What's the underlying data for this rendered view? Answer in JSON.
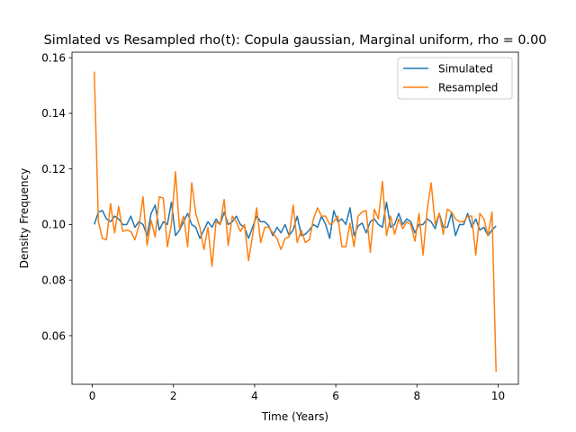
{
  "chart_data": {
    "type": "line",
    "title": "Simlated vs Resampled rho(t): Copula gaussian, Marginal uniform, rho =  0.00",
    "xlabel": "Time (Years)",
    "ylabel": "Density Frequency",
    "xlim": [
      -0.5,
      10.5
    ],
    "ylim": [
      0.0425,
      0.162
    ],
    "xticks": [
      0,
      2,
      4,
      6,
      8,
      10
    ],
    "xtick_labels": [
      "0",
      "2",
      "4",
      "6",
      "8",
      "10"
    ],
    "yticks": [
      0.06,
      0.08,
      0.1,
      0.12,
      0.14,
      0.16
    ],
    "ytick_labels": [
      "0.06",
      "0.08",
      "0.10",
      "0.12",
      "0.14",
      "0.16"
    ],
    "grid": false,
    "legend_position": "top-right",
    "series": [
      {
        "name": "Simulated",
        "color": "#1f77b4",
        "x": [
          0.05,
          0.15,
          0.25,
          0.35,
          0.45,
          0.55,
          0.65,
          0.75,
          0.85,
          0.95,
          1.05,
          1.15,
          1.25,
          1.35,
          1.45,
          1.55,
          1.65,
          1.75,
          1.85,
          1.95,
          2.05,
          2.15,
          2.25,
          2.35,
          2.45,
          2.55,
          2.65,
          2.75,
          2.85,
          2.95,
          3.05,
          3.15,
          3.25,
          3.35,
          3.45,
          3.55,
          3.65,
          3.75,
          3.85,
          3.95,
          4.05,
          4.15,
          4.25,
          4.35,
          4.45,
          4.55,
          4.65,
          4.75,
          4.85,
          4.95,
          5.05,
          5.15,
          5.25,
          5.35,
          5.45,
          5.55,
          5.65,
          5.75,
          5.85,
          5.95,
          6.05,
          6.15,
          6.25,
          6.35,
          6.45,
          6.55,
          6.65,
          6.75,
          6.85,
          6.95,
          7.05,
          7.15,
          7.25,
          7.35,
          7.45,
          7.55,
          7.65,
          7.75,
          7.85,
          7.95,
          8.05,
          8.15,
          8.25,
          8.35,
          8.45,
          8.55,
          8.65,
          8.75,
          8.85,
          8.95,
          9.05,
          9.15,
          9.25,
          9.35,
          9.45,
          9.55,
          9.65,
          9.75,
          9.85,
          9.95
        ],
        "values": [
          0.1,
          0.1045,
          0.105,
          0.102,
          0.101,
          0.103,
          0.102,
          0.1,
          0.1,
          0.103,
          0.099,
          0.101,
          0.1,
          0.096,
          0.104,
          0.107,
          0.098,
          0.101,
          0.1,
          0.108,
          0.096,
          0.098,
          0.101,
          0.104,
          0.1,
          0.099,
          0.095,
          0.098,
          0.101,
          0.099,
          0.102,
          0.1,
          0.1045,
          0.1,
          0.101,
          0.103,
          0.1,
          0.099,
          0.095,
          0.099,
          0.103,
          0.101,
          0.101,
          0.0995,
          0.096,
          0.099,
          0.097,
          0.1,
          0.096,
          0.098,
          0.103,
          0.096,
          0.0965,
          0.098,
          0.1,
          0.099,
          0.103,
          0.1,
          0.095,
          0.105,
          0.101,
          0.102,
          0.1,
          0.106,
          0.096,
          0.0995,
          0.1005,
          0.097,
          0.101,
          0.102,
          0.1,
          0.099,
          0.108,
          0.099,
          0.1,
          0.104,
          0.1,
          0.102,
          0.101,
          0.097,
          0.1,
          0.1,
          0.102,
          0.101,
          0.0985,
          0.104,
          0.099,
          0.099,
          0.104,
          0.096,
          0.1,
          0.1,
          0.104,
          0.099,
          0.102,
          0.098,
          0.099,
          0.096,
          0.098,
          0.0995
        ]
      },
      {
        "name": "Resampled",
        "color": "#ff7f0e",
        "x": [
          0.05,
          0.15,
          0.25,
          0.35,
          0.45,
          0.55,
          0.65,
          0.75,
          0.85,
          0.95,
          1.05,
          1.15,
          1.25,
          1.35,
          1.45,
          1.55,
          1.65,
          1.75,
          1.85,
          1.95,
          2.05,
          2.15,
          2.25,
          2.35,
          2.45,
          2.55,
          2.65,
          2.75,
          2.85,
          2.95,
          3.05,
          3.15,
          3.25,
          3.35,
          3.45,
          3.55,
          3.65,
          3.75,
          3.85,
          3.95,
          4.05,
          4.15,
          4.25,
          4.35,
          4.45,
          4.55,
          4.65,
          4.75,
          4.85,
          4.95,
          5.05,
          5.15,
          5.25,
          5.35,
          5.45,
          5.55,
          5.65,
          5.75,
          5.85,
          5.95,
          6.05,
          6.15,
          6.25,
          6.35,
          6.45,
          6.55,
          6.65,
          6.75,
          6.85,
          6.95,
          7.05,
          7.15,
          7.25,
          7.35,
          7.45,
          7.55,
          7.65,
          7.75,
          7.85,
          7.95,
          8.05,
          8.15,
          8.25,
          8.35,
          8.45,
          8.55,
          8.65,
          8.75,
          8.85,
          8.95,
          9.05,
          9.15,
          9.25,
          9.35,
          9.45,
          9.55,
          9.65,
          9.75,
          9.85,
          9.95
        ],
        "values": [
          0.155,
          0.101,
          0.095,
          0.0945,
          0.1075,
          0.097,
          0.1065,
          0.0975,
          0.098,
          0.0975,
          0.0945,
          0.0995,
          0.11,
          0.0925,
          0.1015,
          0.0955,
          0.11,
          0.1095,
          0.092,
          0.1,
          0.119,
          0.0985,
          0.103,
          0.092,
          0.115,
          0.104,
          0.099,
          0.091,
          0.099,
          0.085,
          0.101,
          0.1,
          0.109,
          0.0925,
          0.103,
          0.101,
          0.0975,
          0.1,
          0.087,
          0.096,
          0.106,
          0.0935,
          0.099,
          0.099,
          0.097,
          0.095,
          0.091,
          0.095,
          0.0955,
          0.107,
          0.0935,
          0.098,
          0.0935,
          0.0945,
          0.102,
          0.106,
          0.103,
          0.103,
          0.1,
          0.101,
          0.103,
          0.092,
          0.092,
          0.1005,
          0.092,
          0.103,
          0.1045,
          0.105,
          0.09,
          0.1055,
          0.102,
          0.1155,
          0.096,
          0.103,
          0.0965,
          0.102,
          0.0985,
          0.101,
          0.1,
          0.094,
          0.104,
          0.089,
          0.105,
          0.115,
          0.1,
          0.104,
          0.0965,
          0.1055,
          0.1045,
          0.102,
          0.101,
          0.101,
          0.103,
          0.103,
          0.089,
          0.104,
          0.102,
          0.096,
          0.1045,
          0.047
        ]
      }
    ]
  }
}
